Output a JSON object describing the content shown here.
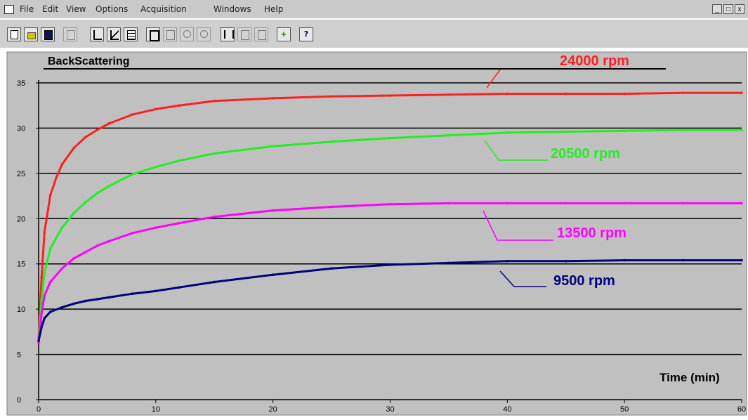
{
  "menubar": {
    "items": [
      "File",
      "Edit",
      "View",
      "Options",
      "Acquisition",
      "Windows",
      "Help"
    ],
    "window_buttons": [
      "_",
      "□",
      "x"
    ]
  },
  "toolbar": {
    "buttons": [
      "new",
      "open",
      "save",
      "print",
      "graph-1",
      "graph-2",
      "graph-3",
      "view-1",
      "view-2",
      "view-3",
      "view-4",
      "scale-1",
      "scale-2",
      "scale-3",
      "cursor",
      "help"
    ]
  },
  "chart_data": {
    "type": "line",
    "title": "BackScattering",
    "xlabel": "Time (min)",
    "ylabel": "",
    "xlim": [
      0,
      60
    ],
    "ylim": [
      0,
      35
    ],
    "xticks": [
      "0",
      "10",
      "20",
      "30",
      "40",
      "50",
      "60"
    ],
    "yticks": [
      "0",
      "5",
      "10",
      "15",
      "20",
      "25",
      "30",
      "35"
    ],
    "grid": "horizontal",
    "series": [
      {
        "name": "24000 rpm",
        "color": "#ff2020",
        "x": [
          0,
          0.25,
          0.5,
          1,
          1.5,
          2,
          3,
          4,
          5,
          6,
          8,
          10,
          12,
          15,
          20,
          25,
          30,
          35,
          40,
          45,
          50,
          55,
          60
        ],
        "y": [
          6.8,
          13.5,
          18.5,
          22.6,
          24.5,
          26.0,
          27.8,
          29.0,
          29.8,
          30.5,
          31.5,
          32.1,
          32.5,
          33.0,
          33.3,
          33.5,
          33.6,
          33.7,
          33.8,
          33.8,
          33.8,
          33.9,
          33.9
        ]
      },
      {
        "name": "20500 rpm",
        "color": "#22ee22",
        "x": [
          0,
          0.25,
          0.5,
          1,
          2,
          3,
          4,
          5,
          6,
          8,
          10,
          12,
          15,
          20,
          25,
          30,
          35,
          40,
          45,
          50,
          55,
          60
        ],
        "y": [
          6.5,
          11.0,
          14.0,
          16.7,
          19.0,
          20.6,
          21.8,
          22.8,
          23.6,
          24.9,
          25.7,
          26.4,
          27.2,
          28.0,
          28.5,
          28.9,
          29.2,
          29.5,
          29.6,
          29.7,
          29.8,
          29.8
        ]
      },
      {
        "name": "13500 rpm",
        "color": "#ff00ff",
        "x": [
          0,
          0.25,
          0.5,
          1,
          2,
          3,
          4,
          5,
          6,
          8,
          10,
          12,
          15,
          20,
          25,
          30,
          35,
          40,
          45,
          50,
          55,
          60
        ],
        "y": [
          6.3,
          9.5,
          11.5,
          13.0,
          14.5,
          15.6,
          16.3,
          17.0,
          17.5,
          18.4,
          19.0,
          19.5,
          20.2,
          20.9,
          21.3,
          21.6,
          21.7,
          21.7,
          21.7,
          21.7,
          21.7,
          21.7
        ]
      },
      {
        "name": "9500 rpm",
        "color": "#000080",
        "x": [
          0,
          0.25,
          0.5,
          1,
          2,
          3,
          4,
          5,
          6,
          8,
          10,
          12,
          15,
          20,
          25,
          30,
          35,
          40,
          45,
          50,
          55,
          60
        ],
        "y": [
          6.5,
          8.0,
          9.0,
          9.7,
          10.2,
          10.6,
          10.9,
          11.1,
          11.3,
          11.7,
          12.0,
          12.4,
          13.0,
          13.8,
          14.5,
          14.9,
          15.1,
          15.3,
          15.3,
          15.4,
          15.4,
          15.4
        ]
      }
    ]
  }
}
